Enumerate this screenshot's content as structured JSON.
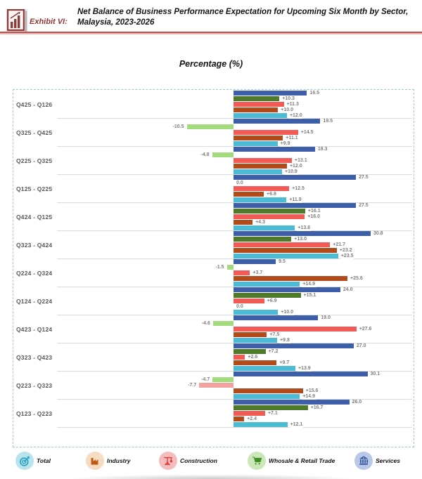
{
  "header": {
    "exhibit_label": "Exhibit VI:",
    "title_line1": "Net Balance of Business Performance Expectation for Upcoming Six Month by Sector,",
    "title_line2": "Malaysia, 2023-2026"
  },
  "chart_data": {
    "type": "bar",
    "orientation": "horizontal",
    "title": "Percentage (%)",
    "value_axis": {
      "unit": "%",
      "baseline": 0,
      "approx_range": [
        -12,
        32
      ],
      "gridlines": "group separators only"
    },
    "legend_position": "bottom",
    "series_order": [
      "Services",
      "Whosale & Retail Trade",
      "Construction",
      "Industry",
      "Total"
    ],
    "palette": {
      "Services": {
        "pos": "#3D5EA8",
        "neg": "#3D5EA8"
      },
      "Whosale & Retail Trade": {
        "pos": "#4D7A28",
        "neg": "#A4DB7E"
      },
      "Construction": {
        "pos": "#F25B55",
        "neg": "#F3A2A0"
      },
      "Industry": {
        "pos": "#B34A1B",
        "neg": "#B34A1B"
      },
      "Total": {
        "pos": "#4BBCD4",
        "neg": "#4BBCD4"
      }
    },
    "rows": [
      {
        "category": "Q425 - Q126",
        "values": [
          16.5,
          10.3,
          11.3,
          10.0,
          12.0
        ],
        "labels": [
          "16.5",
          "+10.3",
          "+11.3",
          "+10.0",
          "+12.0"
        ]
      },
      {
        "category": "Q325 - Q425",
        "values": [
          19.5,
          -10.5,
          14.5,
          11.1,
          9.9
        ],
        "labels": [
          "19.5",
          "-10.5",
          "+14.5",
          "+11.1",
          "+9.9"
        ]
      },
      {
        "category": "Q225 - Q325",
        "values": [
          18.3,
          -4.8,
          13.1,
          12.0,
          10.9
        ],
        "labels": [
          "18.3",
          "-4.8",
          "+13.1",
          "+12.0",
          "+10.9"
        ]
      },
      {
        "category": "Q125 - Q225",
        "values": [
          27.5,
          0.0,
          12.5,
          6.8,
          11.9
        ],
        "labels": [
          "27.5",
          "0.0",
          "+12.5",
          "+6.8",
          "+11.9"
        ]
      },
      {
        "category": "Q424 - Q125",
        "values": [
          27.5,
          16.1,
          16.0,
          4.3,
          13.8
        ],
        "labels": [
          "27.5",
          "+16.1",
          "+16.0",
          "+4.3",
          "+13.8"
        ]
      },
      {
        "category": "Q323 - Q424",
        "values": [
          30.8,
          13.0,
          21.7,
          23.2,
          23.5
        ],
        "labels": [
          "30.8",
          "+13.0",
          "+21.7",
          "+23.2",
          "+23.5"
        ]
      },
      {
        "category": "Q224 - Q324",
        "values": [
          9.5,
          -1.5,
          3.7,
          25.6,
          14.9
        ],
        "labels": [
          "9.5",
          "-1.5",
          "+3.7",
          "+25.6",
          "+14.9"
        ]
      },
      {
        "category": "Q124 - Q224",
        "values": [
          24.0,
          15.1,
          6.9,
          0.0,
          10.0
        ],
        "labels": [
          "24.0",
          "+15.1",
          "+6.9",
          "0.0",
          "+10.0"
        ]
      },
      {
        "category": "Q423 - Q124",
        "values": [
          19.0,
          -4.6,
          27.6,
          7.5,
          9.8
        ],
        "labels": [
          "19.0",
          "-4.6",
          "+27.6",
          "+7.5",
          "+9.8"
        ]
      },
      {
        "category": "Q323 - Q423",
        "values": [
          27.0,
          7.2,
          2.6,
          9.7,
          13.9
        ],
        "labels": [
          "27.0",
          "+7.2",
          "+2.6",
          "+9.7",
          "+13.9"
        ]
      },
      {
        "category": "Q223 - Q323",
        "values": [
          30.1,
          -4.7,
          -7.7,
          15.6,
          14.9
        ],
        "labels": [
          "30.1",
          "-4.7",
          "-7.7",
          "+15.6",
          "+14.9"
        ]
      },
      {
        "category": "Q123 - Q223",
        "values": [
          26.0,
          16.7,
          7.1,
          2.4,
          12.1
        ],
        "labels": [
          "26.0",
          "+16.7",
          "+7.1",
          "+2.4",
          "+12.1"
        ]
      }
    ]
  },
  "legend": {
    "items": [
      {
        "label": "Total",
        "icon": "target-icon",
        "circle_color": "#B9E4EE",
        "glyph_color": "#2AA4BF"
      },
      {
        "label": "Industry",
        "icon": "factory-icon",
        "circle_color": "#F6DCC3",
        "glyph_color": "#C05A11"
      },
      {
        "label": "Construction",
        "icon": "crane-icon",
        "circle_color": "#F6BCBC",
        "glyph_color": "#DD3A3A"
      },
      {
        "label": "Whosale & Retail Trade",
        "icon": "cart-icon",
        "circle_color": "#CBE7BA",
        "glyph_color": "#3F8F25"
      },
      {
        "label": "Services",
        "icon": "bank-icon",
        "circle_color": "#B9C8E9",
        "glyph_color": "#2E5496"
      }
    ]
  }
}
